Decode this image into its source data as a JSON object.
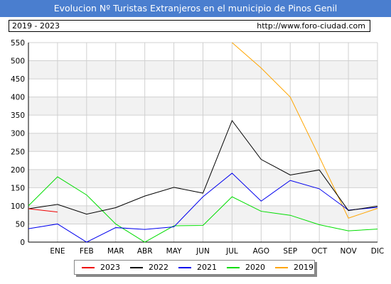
{
  "title": "Evolucion Nº Turistas Extranjeros en el municipio de Pinos Genil",
  "info": {
    "years": "2019 - 2023",
    "url": "http://www.foro-ciudad.com"
  },
  "chart_data": {
    "type": "line",
    "categories": [
      "ENE",
      "FEB",
      "MAR",
      "ABR",
      "MAY",
      "JUN",
      "JUL",
      "AGO",
      "SEP",
      "OCT",
      "NOV",
      "DIC"
    ],
    "ylim": [
      0,
      550
    ],
    "yticks": [
      0,
      50,
      100,
      150,
      200,
      250,
      300,
      350,
      400,
      450,
      500,
      550
    ],
    "grid": true,
    "legend_position": "bottom",
    "series": [
      {
        "name": "2023",
        "color": "#ee0000",
        "values": [
          83,
          null,
          null,
          null,
          null,
          null,
          null,
          null,
          null,
          null,
          null,
          null
        ],
        "start": 92
      },
      {
        "name": "2022",
        "color": "#000000",
        "values": [
          104,
          77,
          95,
          127,
          151,
          135,
          335,
          228,
          185,
          199,
          87,
          99
        ],
        "start": 92
      },
      {
        "name": "2021",
        "color": "#0000ee",
        "values": [
          50,
          0,
          40,
          35,
          42,
          125,
          190,
          113,
          170,
          147,
          88,
          96
        ],
        "start": 37
      },
      {
        "name": "2020",
        "color": "#00dd00",
        "values": [
          180,
          130,
          50,
          0,
          45,
          46,
          125,
          85,
          74,
          48,
          31,
          36
        ],
        "start": 100
      },
      {
        "name": "2019",
        "color": "#ffa500",
        "values": [
          null,
          null,
          null,
          null,
          null,
          null,
          550,
          480,
          400,
          235,
          66,
          93
        ],
        "start": null
      }
    ]
  }
}
